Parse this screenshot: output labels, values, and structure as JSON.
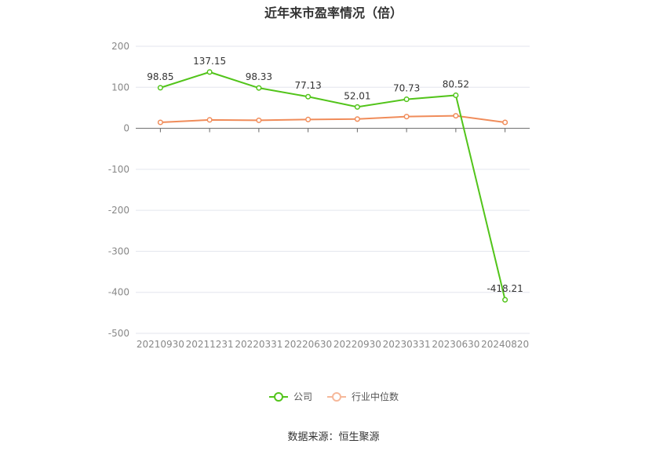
{
  "chart_data": {
    "type": "line",
    "title": "近年来市盈率情况（倍）",
    "categories": [
      "20210930",
      "20211231",
      "20220331",
      "20220630",
      "20220930",
      "20230331",
      "20230630",
      "20240820"
    ],
    "series": [
      {
        "name": "公司",
        "color": "#52c41a",
        "values": [
          98.85,
          137.15,
          98.33,
          77.13,
          52.01,
          70.73,
          80.52,
          -418.21
        ],
        "labels": [
          "98.85",
          "137.15",
          "98.33",
          "77.13",
          "52.01",
          "70.73",
          "80.52",
          "-418.21"
        ]
      },
      {
        "name": "行业中位数",
        "color": "#f08c5a",
        "values": [
          14.5,
          20.5,
          19.5,
          21.5,
          22.5,
          28.5,
          30.5,
          14.5
        ]
      }
    ],
    "ylim": [
      -500,
      200
    ],
    "yticks": [
      200,
      100,
      0,
      -100,
      -200,
      -300,
      -400,
      -500
    ],
    "grid": true,
    "legend": "bottom"
  },
  "source": "数据来源：恒生聚源"
}
